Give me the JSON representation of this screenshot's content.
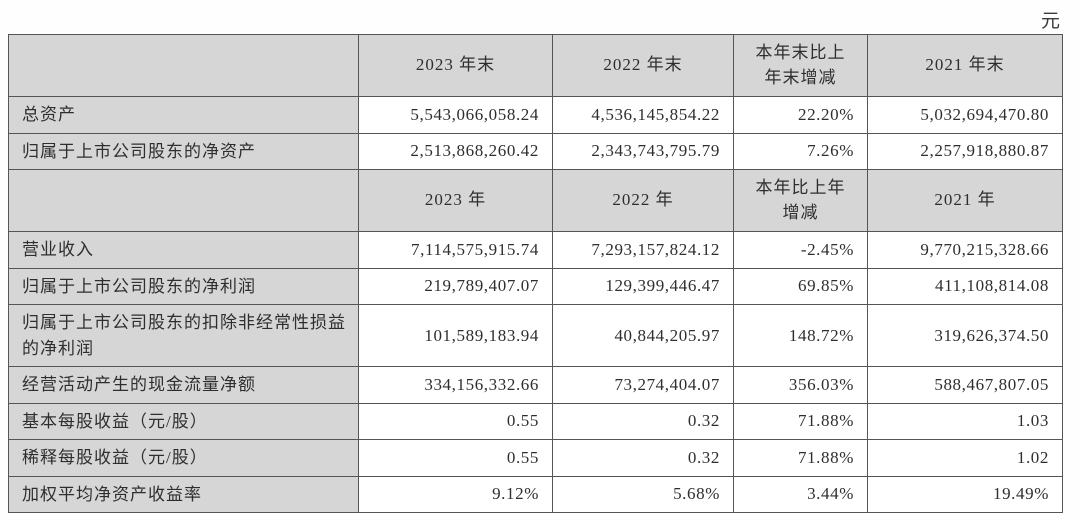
{
  "unit_label": "元",
  "table": {
    "columns": {
      "label_width": 350,
      "value_widths": [
        194,
        181,
        134,
        195
      ]
    },
    "rows": [
      {
        "kind": "header",
        "cells": [
          "",
          "2023 年末",
          "2022 年末",
          "本年末比上\n年末增减",
          "2021 年末"
        ]
      },
      {
        "kind": "data",
        "cells": [
          "总资产",
          "5,543,066,058.24",
          "4,536,145,854.22",
          "22.20%",
          "5,032,694,470.80"
        ]
      },
      {
        "kind": "data",
        "cells": [
          "归属于上市公司股东的净资产",
          "2,513,868,260.42",
          "2,343,743,795.79",
          "7.26%",
          "2,257,918,880.87"
        ]
      },
      {
        "kind": "header",
        "cells": [
          "",
          "2023 年",
          "2022 年",
          "本年比上年\n增减",
          "2021 年"
        ]
      },
      {
        "kind": "data",
        "cells": [
          "营业收入",
          "7,114,575,915.74",
          "7,293,157,824.12",
          "-2.45%",
          "9,770,215,328.66"
        ]
      },
      {
        "kind": "data",
        "cells": [
          "归属于上市公司股东的净利润",
          "219,789,407.07",
          "129,399,446.47",
          "69.85%",
          "411,108,814.08"
        ]
      },
      {
        "kind": "data",
        "cells": [
          "归属于上市公司股东的扣除非经常性损益的净利润",
          "101,589,183.94",
          "40,844,205.97",
          "148.72%",
          "319,626,374.50"
        ]
      },
      {
        "kind": "data",
        "cells": [
          "经营活动产生的现金流量净额",
          "334,156,332.66",
          "73,274,404.07",
          "356.03%",
          "588,467,807.05"
        ]
      },
      {
        "kind": "data",
        "cells": [
          "基本每股收益（元/股）",
          "0.55",
          "0.32",
          "71.88%",
          "1.03"
        ]
      },
      {
        "kind": "data",
        "cells": [
          "稀释每股收益（元/股）",
          "0.55",
          "0.32",
          "71.88%",
          "1.02"
        ]
      },
      {
        "kind": "data",
        "cells": [
          "加权平均净资产收益率",
          "9.12%",
          "5.68%",
          "3.44%",
          "19.49%"
        ]
      }
    ]
  },
  "colors": {
    "header_bg": "#d6d6d6",
    "data_bg": "#ffffff",
    "border": "#555555",
    "text": "#2e2e2e"
  }
}
